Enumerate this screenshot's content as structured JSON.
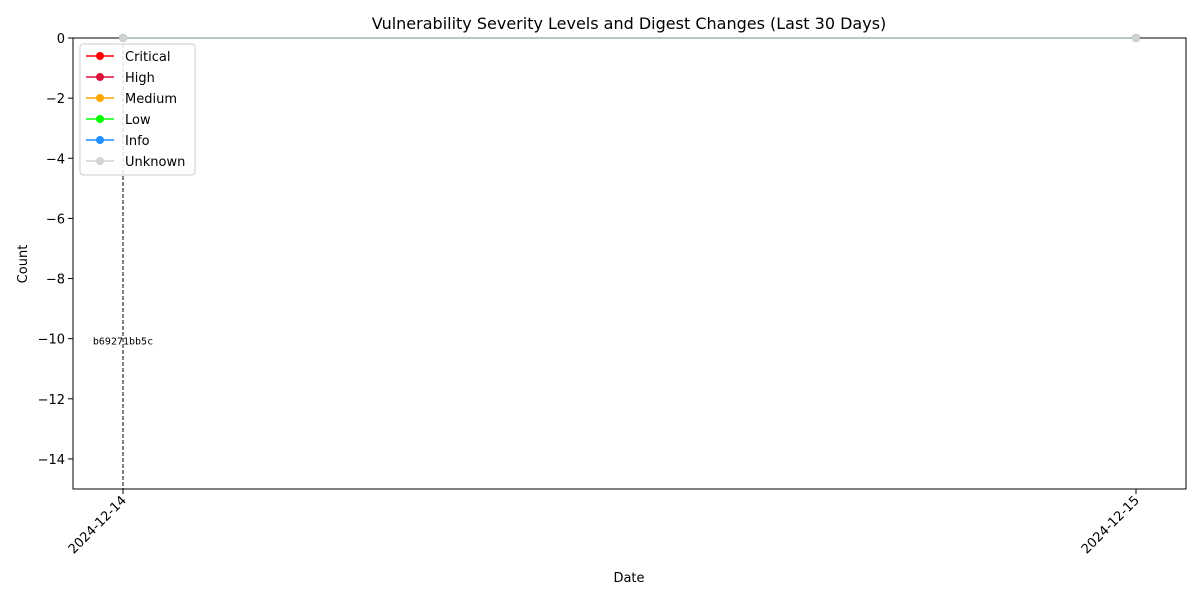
{
  "chart_data": {
    "type": "line",
    "title": "Vulnerability Severity Levels and Digest Changes (Last 30 Days)",
    "xlabel": "Date",
    "ylabel": "Count",
    "categories": [
      "2024-12-14",
      "2024-12-15"
    ],
    "ylim": [
      -15,
      0
    ],
    "yticks": [
      0,
      -2,
      -4,
      -6,
      -8,
      -10,
      -12,
      -14
    ],
    "series": [
      {
        "name": "Critical",
        "color": "#ff0000",
        "values": [
          0,
          0
        ]
      },
      {
        "name": "High",
        "color": "#dc143c",
        "values": [
          0,
          0
        ]
      },
      {
        "name": "Medium",
        "color": "#ffa500",
        "values": [
          0,
          0
        ]
      },
      {
        "name": "Low",
        "color": "#00ff00",
        "values": [
          0,
          0
        ]
      },
      {
        "name": "Info",
        "color": "#1e90ff",
        "values": [
          0,
          0
        ]
      },
      {
        "name": "Unknown",
        "color": "#d3d3d3",
        "values": [
          0,
          0
        ]
      }
    ],
    "digest_changes": [
      {
        "category": "2024-12-14",
        "label": "b69271bb5c"
      }
    ],
    "legend_position": "top-left",
    "grid": false
  }
}
